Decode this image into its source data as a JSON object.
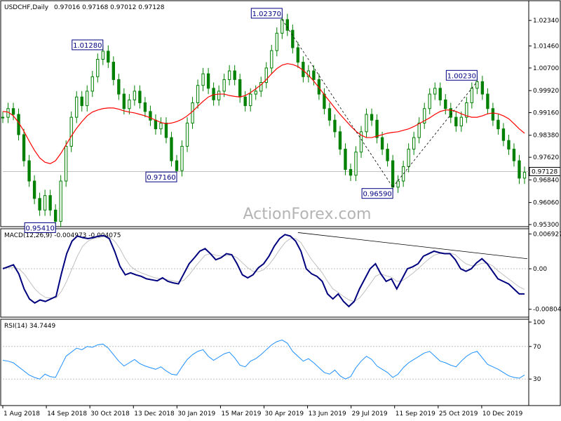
{
  "header": {
    "symbol": "USDCHF,Daily",
    "ohlc": "0.97016 0.97168 0.97012 0.97128"
  },
  "watermark": "ActionForex.com",
  "colors": {
    "candle": "#008000",
    "ma": "#ff0000",
    "macd": "#00007f",
    "signal": "#c0c0c0",
    "rsi": "#1e90ff",
    "grid": "#c0c0c0",
    "label_border": "#000080"
  },
  "chart_data": [
    {
      "type": "line",
      "panel": "price",
      "title": "USDCHF,Daily",
      "ylim": [
        0.953,
        1.029
      ],
      "y_ticks": [
        "1.02340",
        "1.01460",
        "1.00700",
        "0.99920",
        "0.99160",
        "0.98380",
        "0.97620",
        "0.96840",
        "0.96060",
        "0.95300"
      ],
      "y_tick_values": [
        1.0234,
        1.0146,
        1.007,
        0.9992,
        0.9916,
        0.9838,
        0.9762,
        0.9684,
        0.9606,
        0.953
      ],
      "last_price": "0.97128",
      "last_price_value": 0.97128,
      "x_ticks": [
        "1 Aug 2018",
        "14 Sep 2018",
        "30 Oct 2018",
        "13 Dec 2018",
        "30 Jan 2019",
        "15 Mar 2019",
        "30 Apr 2019",
        "13 Jun 2019",
        "29 Jul 2019",
        "11 Sep 2019",
        "25 Oct 2019",
        "10 Dec 2019"
      ],
      "series": [
        {
          "name": "",
          "role": "price",
          "values": [
            0.99,
            0.993,
            0.991,
            0.984,
            0.975,
            0.968,
            0.962,
            0.958,
            0.963,
            0.958,
            0.9541,
            0.968,
            0.98,
            0.99,
            0.997,
            0.994,
            0.999,
            1.004,
            1.01,
            1.0128,
            1.009,
            1.003,
            0.998,
            0.993,
            0.996,
            0.999,
            0.995,
            0.992,
            0.989,
            0.986,
            0.988,
            0.983,
            0.975,
            0.9716,
            0.98,
            0.988,
            0.995,
            1.001,
            1.005,
            1.0,
            0.996,
            0.999,
            1.003,
            1.006,
            1.003,
            0.997,
            0.994,
            0.998,
            0.999,
            1.002,
            1.007,
            1.013,
            1.019,
            1.0237,
            1.02,
            1.014,
            1.009,
            1.004,
            1.006,
            1.003,
            0.998,
            0.993,
            0.989,
            0.985,
            0.979,
            0.972,
            0.97,
            0.978,
            0.985,
            0.991,
            0.989,
            0.983,
            0.979,
            0.975,
            0.9659,
            0.968,
            0.973,
            0.979,
            0.983,
            0.988,
            0.993,
            0.998,
            1.0,
            0.996,
            0.993,
            0.99,
            0.987,
            0.99,
            0.995,
            1.0,
            1.0023,
            0.998,
            0.993,
            0.989,
            0.986,
            0.982,
            0.979,
            0.975,
            0.969,
            0.971
          ]
        },
        {
          "name": "",
          "role": "moving-average",
          "values": [
            0.992,
            0.9918,
            0.9905,
            0.9882,
            0.9852,
            0.9818,
            0.9786,
            0.976,
            0.9745,
            0.974,
            0.975,
            0.9775,
            0.9805,
            0.9835,
            0.9862,
            0.9885,
            0.9905,
            0.9918,
            0.9925,
            0.993,
            0.9932,
            0.9932,
            0.9928,
            0.9922,
            0.9918,
            0.9915,
            0.991,
            0.9905,
            0.9898,
            0.989,
            0.9882,
            0.9878,
            0.988,
            0.9885,
            0.9893,
            0.9905,
            0.992,
            0.9938,
            0.9955,
            0.997,
            0.9978,
            0.998,
            0.998,
            0.9975,
            0.9972,
            0.997,
            0.9975,
            0.9985,
            0.9998,
            1.0012,
            1.003,
            1.005,
            1.0068,
            1.008,
            1.0085,
            1.0082,
            1.0075,
            1.0062,
            1.0045,
            1.0025,
            1.0002,
            0.9978,
            0.9955,
            0.9932,
            0.991,
            0.989,
            0.987,
            0.9852,
            0.9838,
            0.983,
            0.983,
            0.9835,
            0.984,
            0.9845,
            0.9848,
            0.985,
            0.9855,
            0.986,
            0.9868,
            0.9878,
            0.9888,
            0.9898,
            0.991,
            0.992,
            0.9925,
            0.9925,
            0.992,
            0.9912,
            0.9905,
            0.99,
            0.99,
            0.9905,
            0.9912,
            0.9915,
            0.9912,
            0.9905,
            0.9895,
            0.9878,
            0.986,
            0.9845
          ]
        }
      ],
      "annotations": [
        {
          "text": "1.02370",
          "value": 1.0237,
          "index": 53
        },
        {
          "text": "1.01280",
          "value": 1.0128,
          "index": 19
        },
        {
          "text": "0.97160",
          "value": 0.9716,
          "index": 33
        },
        {
          "text": "0.95410",
          "value": 0.9541,
          "index": 10
        },
        {
          "text": "0.96590",
          "value": 0.9659,
          "index": 74
        },
        {
          "text": "1.00230",
          "value": 1.0023,
          "index": 90
        }
      ]
    },
    {
      "type": "line",
      "panel": "macd",
      "title": "MACD(12,26,9) -0.004973 -0.004075",
      "ylim": [
        -0.0092,
        0.0074
      ],
      "y_ticks": [
        "0.006927",
        "0.00",
        "-0.008049"
      ],
      "y_tick_values": [
        0.006927,
        0.0,
        -0.008049
      ],
      "series": [
        {
          "name": "",
          "role": "macd",
          "values": [
            0.0,
            0.0004,
            0.0008,
            -0.001,
            -0.004,
            -0.006,
            -0.0068,
            -0.0062,
            -0.0065,
            -0.006,
            -0.0055,
            -0.001,
            0.003,
            0.0055,
            0.0065,
            0.0062,
            0.006,
            0.0062,
            0.0065,
            0.0066,
            0.006,
            0.0035,
            0.0005,
            -0.0012,
            -0.0008,
            -0.0012,
            -0.0015,
            -0.002,
            -0.0022,
            -0.0024,
            -0.0018,
            -0.0025,
            -0.0028,
            -0.003,
            -0.001,
            0.001,
            0.0022,
            0.0035,
            0.004,
            0.003,
            0.0018,
            0.0022,
            0.003,
            0.0028,
            0.001,
            -0.0012,
            -0.0018,
            -0.0012,
            0.0002,
            0.001,
            0.0025,
            0.0045,
            0.006,
            0.0068,
            0.0065,
            0.0055,
            0.0035,
            0.0,
            -0.001,
            -0.0015,
            -0.0025,
            -0.005,
            -0.006,
            -0.005,
            -0.0065,
            -0.0075,
            -0.0065,
            -0.004,
            -0.002,
            0.0,
            0.001,
            -0.001,
            -0.0025,
            -0.002,
            -0.004,
            -0.002,
            0.0,
            0.0004,
            0.001,
            0.0025,
            0.003,
            0.0035,
            0.0032,
            0.003,
            0.003,
            0.0018,
            0.0,
            -0.0005,
            0.0,
            0.0012,
            0.002,
            0.001,
            -0.0005,
            -0.002,
            -0.0025,
            -0.003,
            -0.004,
            -0.005,
            -0.005
          ]
        },
        {
          "name": "",
          "role": "signal",
          "values": [
            0.0002,
            0.0002,
            0.0003,
            0.0,
            -0.001,
            -0.0025,
            -0.004,
            -0.005,
            -0.0057,
            -0.0058,
            -0.0058,
            -0.0045,
            -0.0025,
            0.0,
            0.0025,
            0.0045,
            0.0055,
            0.006,
            0.0062,
            0.0064,
            0.0063,
            0.0055,
            0.004,
            0.002,
            0.0005,
            -0.0003,
            -0.0008,
            -0.0012,
            -0.0016,
            -0.0019,
            -0.002,
            -0.0022,
            -0.0024,
            -0.0026,
            -0.0023,
            -0.0012,
            0.0002,
            0.0015,
            0.0027,
            0.003,
            0.0027,
            0.0025,
            0.0026,
            0.0027,
            0.0022,
            0.0012,
            0.0002,
            -0.0005,
            -0.0006,
            -0.0002,
            0.0008,
            0.0022,
            0.0038,
            0.0052,
            0.006,
            0.006,
            0.0052,
            0.0035,
            0.0018,
            0.0005,
            -0.0008,
            -0.0025,
            -0.004,
            -0.0047,
            -0.0055,
            -0.0062,
            -0.0065,
            -0.0058,
            -0.0045,
            -0.003,
            -0.0015,
            -0.001,
            -0.0014,
            -0.0017,
            -0.0025,
            -0.0024,
            -0.0017,
            -0.0009,
            0.0,
            0.001,
            0.0019,
            0.0027,
            0.003,
            0.0031,
            0.0031,
            0.0028,
            0.0018,
            0.001,
            0.0006,
            0.0007,
            0.0011,
            0.0011,
            0.0006,
            -0.0004,
            -0.0012,
            -0.002,
            -0.0028,
            -0.0036,
            -0.0041
          ]
        }
      ],
      "trendline": {
        "from_index": 56,
        "from_value": 0.0072,
        "to_index": 99,
        "to_value": 0.002
      }
    },
    {
      "type": "line",
      "panel": "rsi",
      "title": "RSI(14) 34.7449",
      "ylim": [
        0,
        100
      ],
      "y_ticks": [
        "100",
        "70",
        "30"
      ],
      "y_tick_values": [
        100,
        70,
        30
      ],
      "levels": [
        70,
        30
      ],
      "series": [
        {
          "name": "",
          "role": "rsi",
          "values": [
            53,
            52,
            50,
            45,
            40,
            35,
            32,
            30,
            36,
            33,
            32,
            45,
            58,
            63,
            68,
            66,
            70,
            69,
            72,
            73,
            68,
            60,
            52,
            46,
            50,
            54,
            49,
            46,
            44,
            42,
            45,
            40,
            36,
            35,
            45,
            54,
            60,
            64,
            66,
            58,
            53,
            57,
            61,
            63,
            56,
            47,
            45,
            52,
            55,
            60,
            66,
            72,
            76,
            78,
            74,
            64,
            58,
            52,
            55,
            50,
            44,
            38,
            36,
            41,
            34,
            30,
            33,
            44,
            52,
            58,
            54,
            46,
            42,
            38,
            32,
            36,
            44,
            50,
            54,
            58,
            62,
            64,
            58,
            52,
            50,
            47,
            45,
            52,
            58,
            62,
            64,
            56,
            48,
            45,
            42,
            38,
            34,
            32,
            31,
            35
          ]
        }
      ]
    }
  ]
}
